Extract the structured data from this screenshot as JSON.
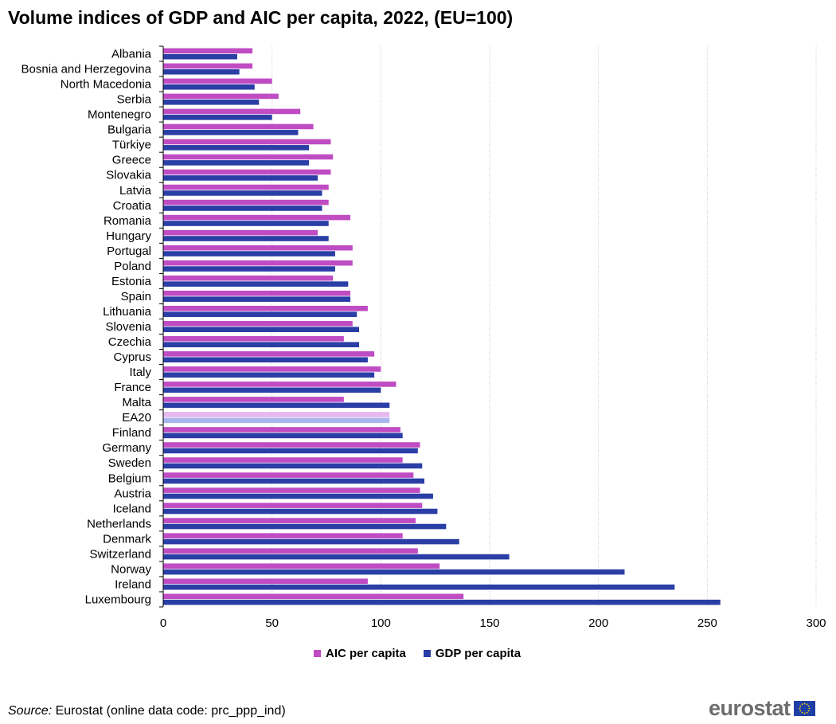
{
  "title": "Volume indices of GDP and AIC per capita, 2022, (EU=100)",
  "source_label": "Source:",
  "source_text": " Eurostat (online data code: prc_ppp_ind)",
  "logo_text": "eurostat",
  "colors": {
    "aic": "#c04cc4",
    "gdp": "#2a3ea6",
    "aic_highlight": "#e6b8ee",
    "gdp_highlight": "#a8b6ee",
    "grid": "#c8c8c8"
  },
  "legend": {
    "aic_label": "AIC per capita",
    "gdp_label": "GDP per capita"
  },
  "chart_data": {
    "type": "bar",
    "orientation": "horizontal",
    "title": "Volume indices of GDP and AIC per capita, 2022, (EU=100)",
    "xlim": [
      0,
      300
    ],
    "x_ticks": [
      0,
      50,
      100,
      150,
      200,
      250,
      300
    ],
    "grid": true,
    "legend_position": "bottom",
    "highlight_category": "EA20",
    "categories": [
      "Albania",
      "Bosnia and Herzegovina",
      "North Macedonia",
      "Serbia",
      "Montenegro",
      "Bulgaria",
      "Türkiye",
      "Greece",
      "Slovakia",
      "Latvia",
      "Croatia",
      "Romania",
      "Hungary",
      "Portugal",
      "Poland",
      "Estonia",
      "Spain",
      "Lithuania",
      "Slovenia",
      "Czechia",
      "Cyprus",
      "Italy",
      "France",
      "Malta",
      "EA20",
      "Finland",
      "Germany",
      "Sweden",
      "Belgium",
      "Austria",
      "Iceland",
      "Netherlands",
      "Denmark",
      "Switzerland",
      "Norway",
      "Ireland",
      "Luxembourg"
    ],
    "series": [
      {
        "name": "AIC per capita",
        "values": [
          41,
          41,
          50,
          53,
          63,
          69,
          77,
          78,
          77,
          76,
          76,
          86,
          71,
          87,
          87,
          78,
          86,
          94,
          87,
          83,
          97,
          100,
          107,
          83,
          104,
          109,
          118,
          110,
          115,
          118,
          119,
          116,
          110,
          117,
          127,
          94,
          138
        ]
      },
      {
        "name": "GDP per capita",
        "values": [
          34,
          35,
          42,
          44,
          50,
          62,
          67,
          67,
          71,
          73,
          73,
          76,
          76,
          79,
          79,
          85,
          86,
          89,
          90,
          90,
          94,
          97,
          100,
          104,
          104,
          110,
          117,
          119,
          120,
          124,
          126,
          130,
          136,
          159,
          212,
          235,
          256
        ]
      }
    ]
  }
}
